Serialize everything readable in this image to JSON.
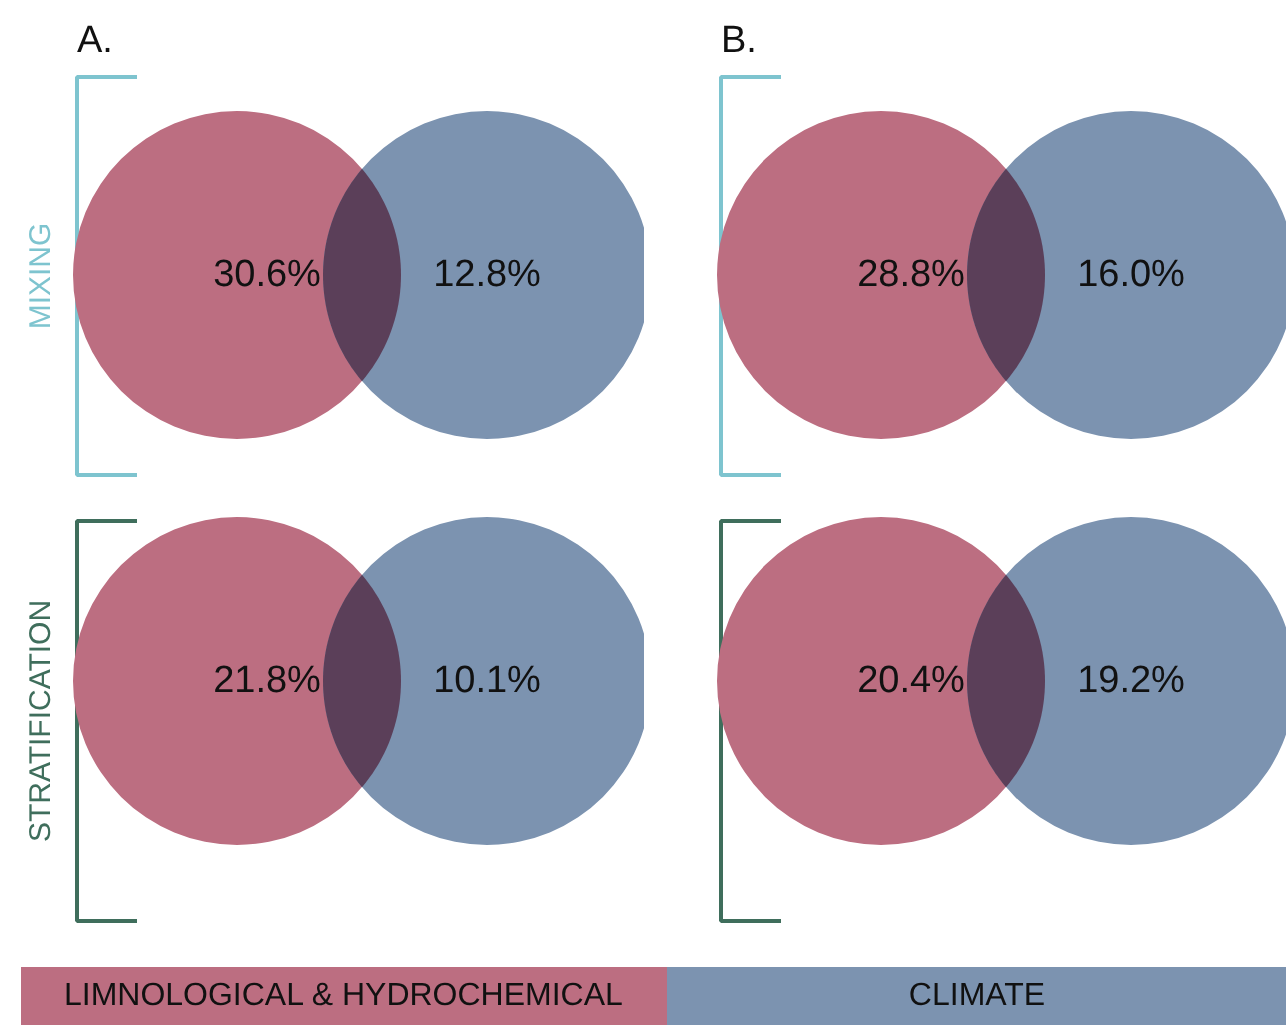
{
  "chart_data": [
    {
      "type": "other",
      "title": "A.",
      "ylabel": "MIXING",
      "colors": [
        "#bc6e81",
        "#7c93b0"
      ],
      "values": [
        30.6,
        12.8
      ],
      "value_labels": [
        "30.6%",
        "12.8%"
      ]
    },
    {
      "type": "other",
      "title": "B.",
      "colors": [
        "#bc6e81",
        "#7c93b0"
      ],
      "values": [
        28.8,
        16.0
      ],
      "value_labels": [
        "28.8%",
        "16.0%"
      ]
    },
    {
      "type": "other",
      "ylabel": "STRATIFICATION",
      "colors": [
        "#bc6e81",
        "#7c93b0"
      ],
      "values": [
        21.8,
        10.1
      ],
      "value_labels": [
        "21.8%",
        "10.1%"
      ]
    },
    {
      "type": "other",
      "colors": [
        "#bc6e81",
        "#7c93b0"
      ],
      "values": [
        20.4,
        19.2
      ],
      "value_labels": [
        "20.4%",
        "19.2%"
      ]
    },
    {
      "type": "other",
      "categories": [
        "LIMNOLOGICAL & HYDROCHEMICAL",
        "CLIMATE"
      ],
      "colors": [
        "#bc6e81",
        "#7c93b0"
      ]
    }
  ]
}
